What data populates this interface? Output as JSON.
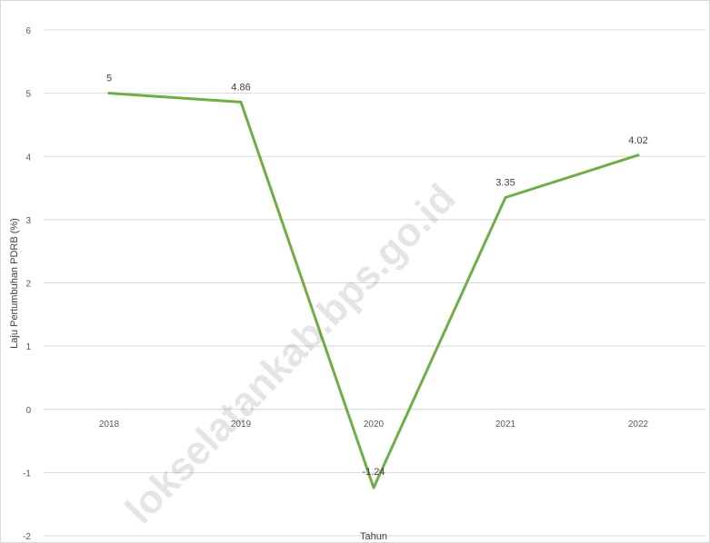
{
  "chart_data": {
    "type": "line",
    "title": "",
    "xlabel": "Tahun",
    "ylabel": "Laju Pertumbuhan PDRB (%)",
    "categories": [
      "2018",
      "2019",
      "2020",
      "2021",
      "2022"
    ],
    "series": [
      {
        "values": [
          5,
          4.86,
          -1.24,
          3.35,
          4.02
        ],
        "labels": [
          "5",
          "4.86",
          "-1.24",
          "3.35",
          "4.02"
        ]
      }
    ],
    "ylim": [
      -2,
      6
    ],
    "yticks": [
      6,
      5,
      4,
      3,
      2,
      1,
      0,
      -1,
      -2
    ],
    "grid": true,
    "legend": "none",
    "line_color": "#70ad47",
    "gridline_color": "#d9d9d9",
    "watermark": "lokselatankab.bps.go.id"
  }
}
